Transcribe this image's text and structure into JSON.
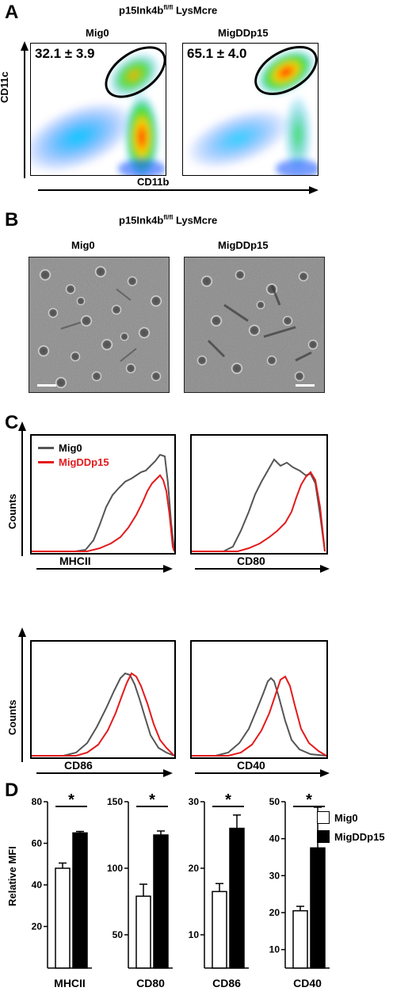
{
  "panelA": {
    "letter": "A",
    "header": "p15Ink4b",
    "header_sup": "fl/fl",
    "header_suffix": " LysMcre",
    "plots": [
      {
        "title": "Mig0",
        "value": "32.1 ± 3.9"
      },
      {
        "title": "MigDDp15",
        "value": "65.1 ± 4.0"
      }
    ],
    "ylabel": "CD11c",
    "xlabel": "CD11b"
  },
  "panelB": {
    "letter": "B",
    "header": "p15Ink4b",
    "header_sup": "fl/fl",
    "header_suffix": " LysMcre",
    "images": [
      "Mig0",
      "MigDDp15"
    ]
  },
  "panelC": {
    "letter": "C",
    "legend": [
      {
        "name": "Mig0",
        "color": "#555555"
      },
      {
        "name": "MigDDp15",
        "color": "#e41a1c"
      }
    ],
    "ylabel": "Counts",
    "histograms": [
      "MHCII",
      "CD80",
      "CD86",
      "CD40"
    ]
  },
  "panelD": {
    "letter": "D",
    "ylabel": "Relative MFI",
    "legend": [
      {
        "name": "Mig0",
        "fill": "#ffffff"
      },
      {
        "name": "MigDDp15",
        "fill": "#000000"
      }
    ],
    "significance": "*"
  },
  "chart_data": [
    {
      "type": "bar",
      "title": "",
      "xlabel": "MHCII",
      "ylabel": "Relative MFI",
      "categories": [
        "Mig0",
        "MigDDp15"
      ],
      "values": [
        48,
        65
      ],
      "errors": [
        2.5,
        0.7
      ],
      "ylim": [
        0,
        80
      ],
      "yticks": [
        20,
        40,
        60,
        80
      ]
    },
    {
      "type": "bar",
      "title": "",
      "xlabel": "CD80",
      "ylabel": "",
      "categories": [
        "Mig0",
        "MigDDp15"
      ],
      "values": [
        79,
        125
      ],
      "errors": [
        9,
        3
      ],
      "ylim": [
        25,
        150
      ],
      "yticks": [
        50,
        100,
        150
      ]
    },
    {
      "type": "bar",
      "title": "",
      "xlabel": "CD86",
      "ylabel": "",
      "categories": [
        "Mig0",
        "MigDDp15"
      ],
      "values": [
        16.5,
        26
      ],
      "errors": [
        1.2,
        2
      ],
      "ylim": [
        5,
        30
      ],
      "yticks": [
        10,
        20,
        30
      ]
    },
    {
      "type": "bar",
      "title": "",
      "xlabel": "CD40",
      "ylabel": "",
      "categories": [
        "Mig0",
        "MigDDp15"
      ],
      "values": [
        20.5,
        37.5
      ],
      "errors": [
        1.2,
        11
      ],
      "ylim": [
        5,
        50
      ],
      "yticks": [
        10,
        20,
        30,
        40,
        50
      ]
    }
  ]
}
